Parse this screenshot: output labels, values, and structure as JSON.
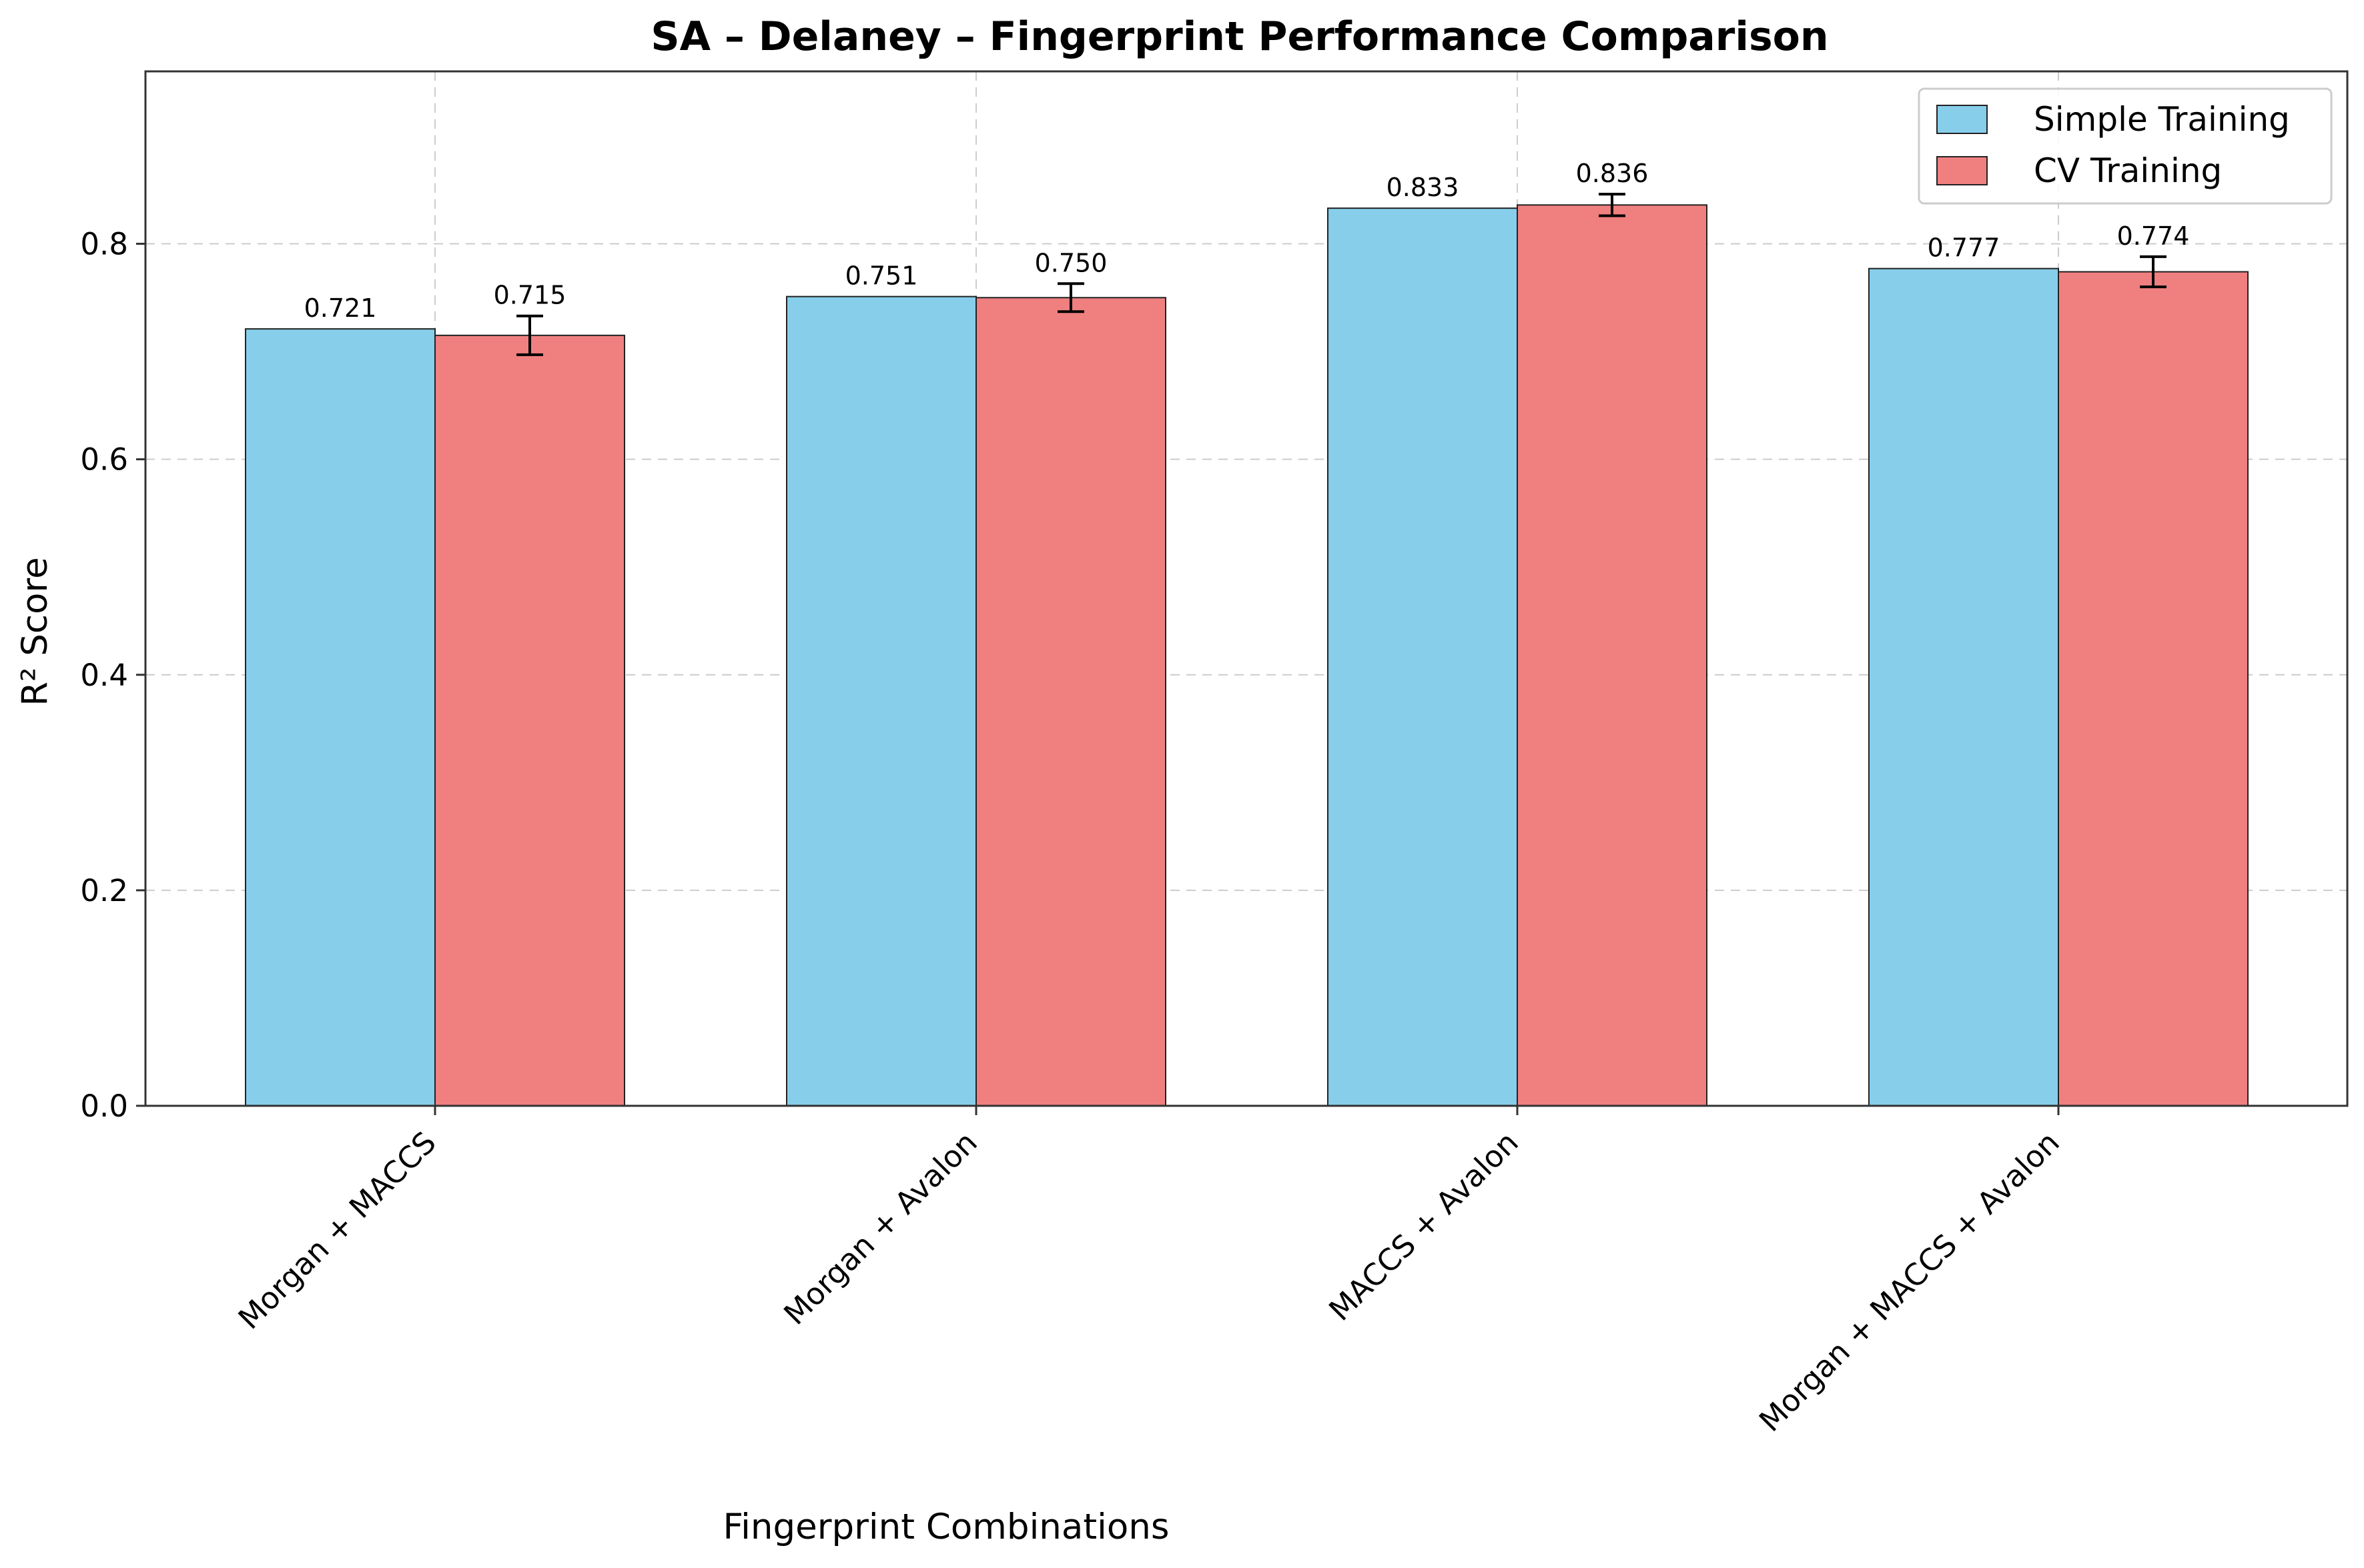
{
  "chart_data": {
    "type": "bar",
    "title": "SA – Delaney – Fingerprint Performance Comparison",
    "xlabel": "Fingerprint Combinations",
    "ylabel": "R² Score",
    "ylim": [
      0,
      0.96
    ],
    "yticks": [
      0.0,
      0.2,
      0.4,
      0.6,
      0.8
    ],
    "ytick_labels": [
      "0.0",
      "0.2",
      "0.4",
      "0.6",
      "0.8"
    ],
    "categories": [
      "Morgan + MACCS",
      "Morgan + Avalon",
      "MACCS + Avalon",
      "Morgan + MACCS + Avalon"
    ],
    "series": [
      {
        "name": "Simple Training",
        "color": "#87CEEB",
        "values": [
          0.721,
          0.751,
          0.833,
          0.777
        ],
        "labels": [
          "0.721",
          "0.751",
          "0.833",
          "0.777"
        ]
      },
      {
        "name": "CV Training",
        "color": "#F08080",
        "values": [
          0.715,
          0.75,
          0.836,
          0.774
        ],
        "errors": [
          0.018,
          0.013,
          0.01,
          0.014
        ],
        "labels": [
          "0.715",
          "0.750",
          "0.836",
          "0.774"
        ]
      }
    ],
    "grid": true,
    "legend_position": "top-right"
  }
}
